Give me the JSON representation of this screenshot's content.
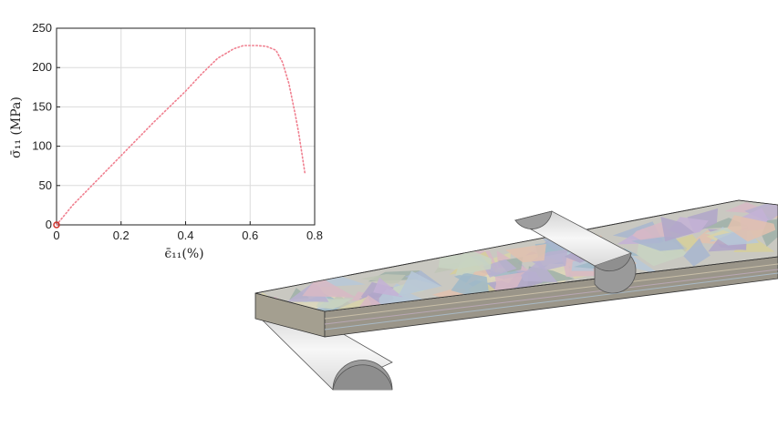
{
  "chart_data": {
    "type": "scatter",
    "xlabel": "ϵ̄₁₁(%)",
    "ylabel": "σ̄₁₁ (MPa)",
    "xlim": [
      0,
      0.8
    ],
    "ylim": [
      0,
      250
    ],
    "x_ticks": [
      "0",
      "0.2",
      "0.4",
      "0.6",
      "0.8"
    ],
    "y_ticks": [
      "0",
      "50",
      "100",
      "150",
      "200",
      "250"
    ],
    "grid": true,
    "series": [
      {
        "style": "dotted",
        "color": "#f08090",
        "x": [
          0,
          0.05,
          0.1,
          0.15,
          0.2,
          0.25,
          0.3,
          0.35,
          0.4,
          0.45,
          0.5,
          0.55,
          0.58,
          0.6,
          0.62,
          0.65,
          0.68,
          0.7,
          0.72,
          0.73,
          0.74,
          0.75,
          0.76,
          0.77
        ],
        "y": [
          0,
          25,
          46,
          67,
          88,
          109,
          130,
          150,
          170,
          192,
          212,
          224,
          228,
          228,
          228,
          227,
          222,
          207,
          180,
          160,
          140,
          118,
          92,
          65
        ]
      }
    ],
    "marker": {
      "x": 0,
      "y": 0,
      "color": "#d0302a"
    }
  },
  "colors": {
    "grid": "#dcdcdc",
    "axis": "#222222",
    "beam_top": "#c8c7c0",
    "beam_side": "#8a8a8a",
    "support_fill": "#e9e9e9",
    "support_dark": "#8c8c8c"
  }
}
